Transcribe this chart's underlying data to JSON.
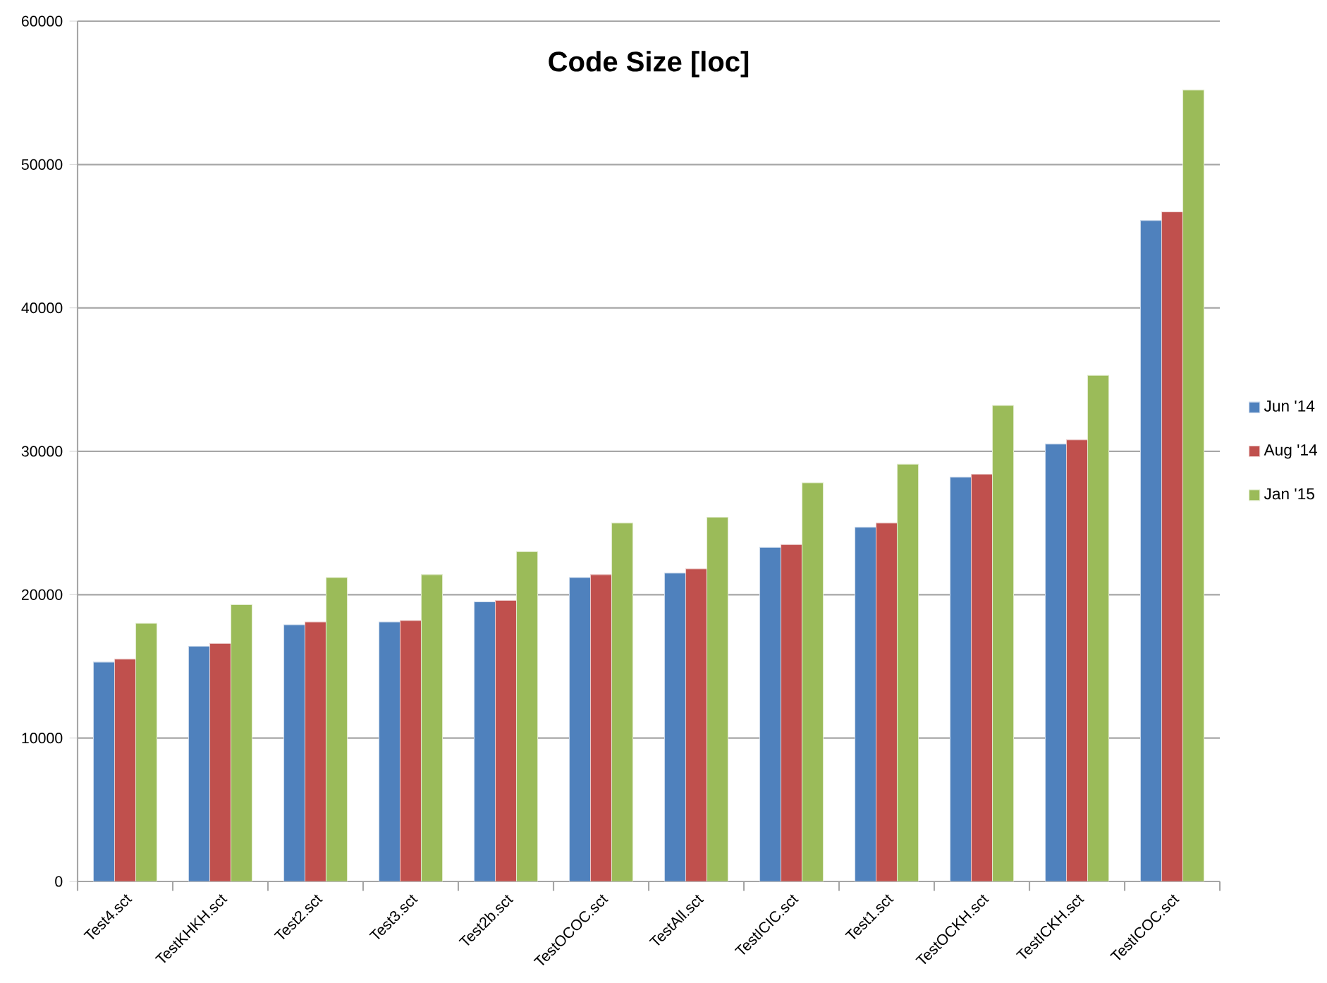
{
  "chart_data": {
    "type": "bar",
    "title": "Code Size [loc]",
    "categories": [
      "Test4.sct",
      "TestKHKH.sct",
      "Test2.sct",
      "Test3.sct",
      "Test2b.sct",
      "TestOCOC.sct",
      "TestAll.sct",
      "TestICIC.sct",
      "Test1.sct",
      "TestOCKH.sct",
      "TestICKH.sct",
      "TestICOC.sct"
    ],
    "series": [
      {
        "name": "Jun '14",
        "color": "#4f81bd",
        "values": [
          15300,
          16400,
          17900,
          18100,
          19500,
          21200,
          21500,
          23300,
          24700,
          28200,
          30500,
          46100
        ]
      },
      {
        "name": "Aug '14",
        "color": "#c0504d",
        "values": [
          15500,
          16600,
          18100,
          18200,
          19600,
          21400,
          21800,
          23500,
          25000,
          28400,
          30800,
          46700
        ]
      },
      {
        "name": "Jan '15",
        "color": "#9bbb59",
        "values": [
          18000,
          19300,
          21200,
          21400,
          23000,
          25000,
          25400,
          27800,
          29100,
          33200,
          35300,
          55200
        ]
      }
    ],
    "ylim": [
      0,
      60000
    ],
    "yticks": [
      0,
      10000,
      20000,
      30000,
      40000,
      50000,
      60000
    ],
    "grid": "y",
    "legend": "right"
  }
}
